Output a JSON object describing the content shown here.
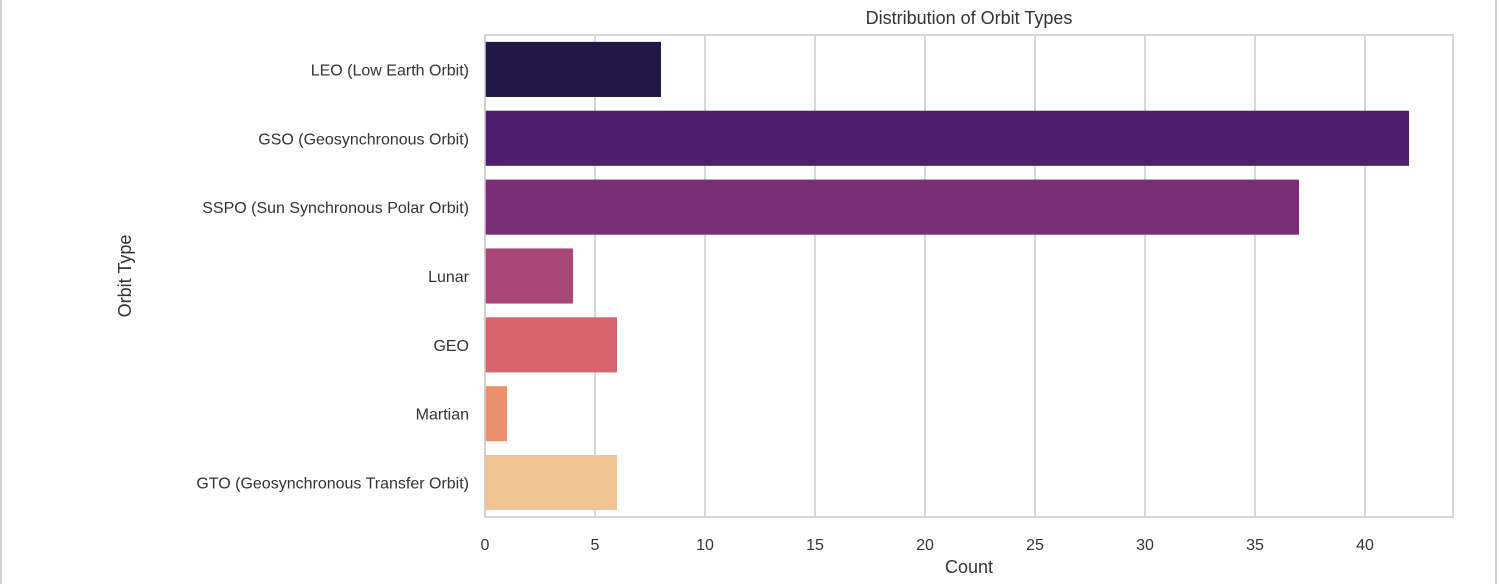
{
  "chart_data": {
    "type": "bar",
    "orientation": "horizontal",
    "title": "Distribution of Orbit Types",
    "xlabel": "Count",
    "ylabel": "Orbit Type",
    "xlim": [
      0,
      44
    ],
    "xticks": [
      0,
      5,
      10,
      15,
      20,
      25,
      30,
      35,
      40
    ],
    "grid": "vertical",
    "categories": [
      "LEO (Low Earth Orbit)",
      "GSO (Geosynchronous Orbit)",
      "SSPO (Sun Synchronous Polar Orbit)",
      "Lunar",
      "GEO",
      "Martian",
      "GTO (Geosynchronous Transfer Orbit)"
    ],
    "values": [
      8,
      42,
      37,
      4,
      6,
      1,
      6
    ],
    "colors": [
      "#211845",
      "#4e1d6b",
      "#792f76",
      "#a84676",
      "#d6636d",
      "#ea906e",
      "#f0c495"
    ]
  }
}
